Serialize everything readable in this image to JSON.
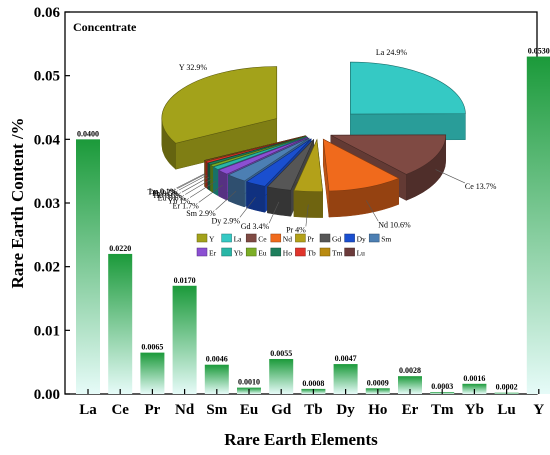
{
  "chart_data": [
    {
      "type": "bar",
      "title": "Concentrate",
      "xlabel": "Rare Earth Elements",
      "ylabel": "Rare Earth Content /%",
      "ylim": [
        0,
        0.06
      ],
      "yticks": [
        "0.00",
        "0.01",
        "0.02",
        "0.03",
        "0.04",
        "0.05",
        "0.06"
      ],
      "categories": [
        "La",
        "Ce",
        "Pr",
        "Nd",
        "Sm",
        "Eu",
        "Gd",
        "Tb",
        "Dy",
        "Ho",
        "Er",
        "Tm",
        "Yb",
        "Lu",
        "Y"
      ],
      "values": [
        0.04,
        0.022,
        0.0065,
        0.017,
        0.0046,
        0.001,
        0.0055,
        0.0008,
        0.0047,
        0.0009,
        0.0028,
        0.0003,
        0.0016,
        0.0002,
        0.053
      ],
      "value_labels": [
        "0.0400",
        "0.0220",
        "0.0065",
        "0.0170",
        "0.0046",
        "0.0010",
        "0.0055",
        "0.0008",
        "0.0047",
        "0.0009",
        "0.0028",
        "0.0003",
        "0.0016",
        "0.0002",
        "0.0530"
      ],
      "bar_color_top": "#1b9a3a",
      "bar_color_bottom": "#e6fbf8",
      "grid": false
    },
    {
      "type": "pie",
      "style": "3d-exploded",
      "slices": [
        {
          "name": "Y",
          "value": 32.9,
          "label": "Y 32.9%",
          "color": "#a3a21a"
        },
        {
          "name": "La",
          "value": 24.9,
          "label": "La 24.9%",
          "color": "#35c9c4"
        },
        {
          "name": "Ce",
          "value": 13.7,
          "label": "Ce 13.7%",
          "color": "#7f4a43"
        },
        {
          "name": "Nd",
          "value": 10.6,
          "label": "Nd 10.6%",
          "color": "#f06a1c"
        },
        {
          "name": "Pr",
          "value": 4.0,
          "label": "Pr 4%",
          "color": "#b3a119"
        },
        {
          "name": "Gd",
          "value": 3.4,
          "label": "Gd 3.4%",
          "color": "#565656"
        },
        {
          "name": "Dy",
          "value": 2.9,
          "label": "Dy 2.9%",
          "color": "#1a4fcf"
        },
        {
          "name": "Sm",
          "value": 2.9,
          "label": "Sm 2.9%",
          "color": "#4c7fb3"
        },
        {
          "name": "Er",
          "value": 1.7,
          "label": "Er 1.7%",
          "color": "#8b4fd2"
        },
        {
          "name": "Yb",
          "value": 1.0,
          "label": "Yb 1%",
          "color": "#28b6a6"
        },
        {
          "name": "Eu",
          "value": 0.6,
          "label": "Eu 0.6%",
          "color": "#7cae26"
        },
        {
          "name": "Ho",
          "value": 0.6,
          "label": "Ho 0.6%",
          "color": "#1e7e5c"
        },
        {
          "name": "Tb",
          "value": 0.5,
          "label": "Tb 0.5%",
          "color": "#e0342b"
        },
        {
          "name": "Tm",
          "value": 0.2,
          "label": "Tm 0.2%",
          "color": "#b98a10"
        },
        {
          "name": "Lu",
          "value": 0.1,
          "label": "Lu 0.1%",
          "color": "#6b3a3a"
        }
      ],
      "legend": [
        "Y",
        "La",
        "Ce",
        "Nd",
        "Pr",
        "Gd",
        "Dy",
        "Sm",
        "Er",
        "Yb",
        "Eu",
        "Ho",
        "Tb",
        "Tm",
        "Lu"
      ]
    }
  ]
}
